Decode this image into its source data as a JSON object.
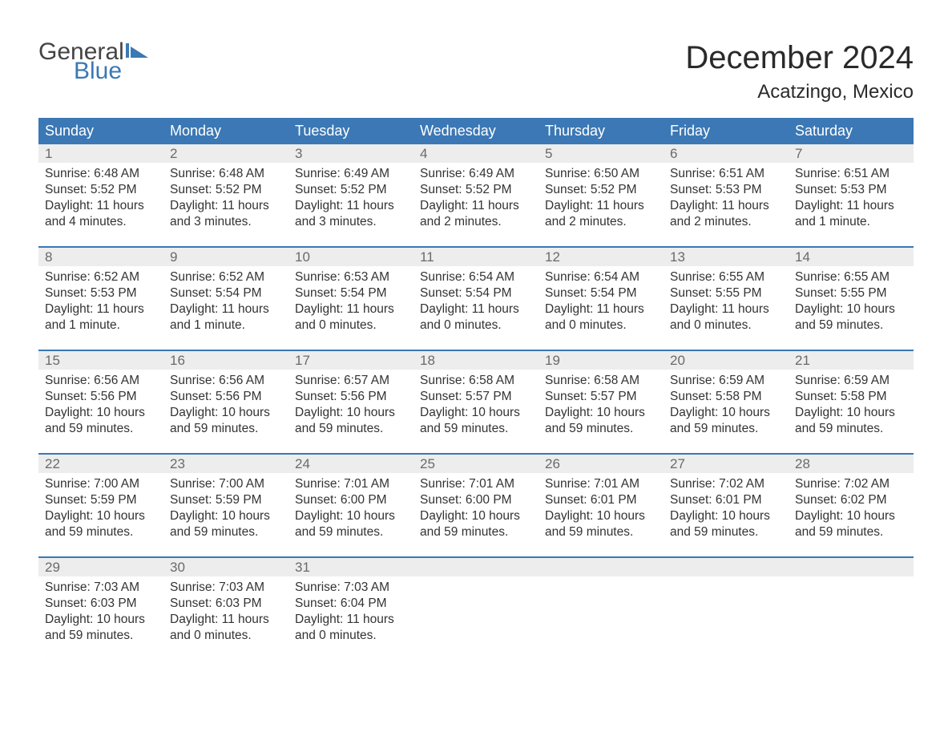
{
  "logo": {
    "top": "General",
    "bottom": "Blue",
    "top_color": "#444444",
    "bottom_color": "#3b78b5",
    "flag_color": "#3b78b5"
  },
  "title": "December 2024",
  "location": "Acatzingo, Mexico",
  "colors": {
    "header_bg": "#3b78b5",
    "header_text": "#ffffff",
    "daynum_bg": "#ededed",
    "daynum_text": "#6a6a6a",
    "body_text": "#333333",
    "week_border": "#3b78b5",
    "page_bg": "#ffffff"
  },
  "weekdays": [
    "Sunday",
    "Monday",
    "Tuesday",
    "Wednesday",
    "Thursday",
    "Friday",
    "Saturday"
  ],
  "weeks": [
    [
      {
        "num": "1",
        "sunrise": "Sunrise: 6:48 AM",
        "sunset": "Sunset: 5:52 PM",
        "daylight": "Daylight: 11 hours and 4 minutes."
      },
      {
        "num": "2",
        "sunrise": "Sunrise: 6:48 AM",
        "sunset": "Sunset: 5:52 PM",
        "daylight": "Daylight: 11 hours and 3 minutes."
      },
      {
        "num": "3",
        "sunrise": "Sunrise: 6:49 AM",
        "sunset": "Sunset: 5:52 PM",
        "daylight": "Daylight: 11 hours and 3 minutes."
      },
      {
        "num": "4",
        "sunrise": "Sunrise: 6:49 AM",
        "sunset": "Sunset: 5:52 PM",
        "daylight": "Daylight: 11 hours and 2 minutes."
      },
      {
        "num": "5",
        "sunrise": "Sunrise: 6:50 AM",
        "sunset": "Sunset: 5:52 PM",
        "daylight": "Daylight: 11 hours and 2 minutes."
      },
      {
        "num": "6",
        "sunrise": "Sunrise: 6:51 AM",
        "sunset": "Sunset: 5:53 PM",
        "daylight": "Daylight: 11 hours and 2 minutes."
      },
      {
        "num": "7",
        "sunrise": "Sunrise: 6:51 AM",
        "sunset": "Sunset: 5:53 PM",
        "daylight": "Daylight: 11 hours and 1 minute."
      }
    ],
    [
      {
        "num": "8",
        "sunrise": "Sunrise: 6:52 AM",
        "sunset": "Sunset: 5:53 PM",
        "daylight": "Daylight: 11 hours and 1 minute."
      },
      {
        "num": "9",
        "sunrise": "Sunrise: 6:52 AM",
        "sunset": "Sunset: 5:54 PM",
        "daylight": "Daylight: 11 hours and 1 minute."
      },
      {
        "num": "10",
        "sunrise": "Sunrise: 6:53 AM",
        "sunset": "Sunset: 5:54 PM",
        "daylight": "Daylight: 11 hours and 0 minutes."
      },
      {
        "num": "11",
        "sunrise": "Sunrise: 6:54 AM",
        "sunset": "Sunset: 5:54 PM",
        "daylight": "Daylight: 11 hours and 0 minutes."
      },
      {
        "num": "12",
        "sunrise": "Sunrise: 6:54 AM",
        "sunset": "Sunset: 5:54 PM",
        "daylight": "Daylight: 11 hours and 0 minutes."
      },
      {
        "num": "13",
        "sunrise": "Sunrise: 6:55 AM",
        "sunset": "Sunset: 5:55 PM",
        "daylight": "Daylight: 11 hours and 0 minutes."
      },
      {
        "num": "14",
        "sunrise": "Sunrise: 6:55 AM",
        "sunset": "Sunset: 5:55 PM",
        "daylight": "Daylight: 10 hours and 59 minutes."
      }
    ],
    [
      {
        "num": "15",
        "sunrise": "Sunrise: 6:56 AM",
        "sunset": "Sunset: 5:56 PM",
        "daylight": "Daylight: 10 hours and 59 minutes."
      },
      {
        "num": "16",
        "sunrise": "Sunrise: 6:56 AM",
        "sunset": "Sunset: 5:56 PM",
        "daylight": "Daylight: 10 hours and 59 minutes."
      },
      {
        "num": "17",
        "sunrise": "Sunrise: 6:57 AM",
        "sunset": "Sunset: 5:56 PM",
        "daylight": "Daylight: 10 hours and 59 minutes."
      },
      {
        "num": "18",
        "sunrise": "Sunrise: 6:58 AM",
        "sunset": "Sunset: 5:57 PM",
        "daylight": "Daylight: 10 hours and 59 minutes."
      },
      {
        "num": "19",
        "sunrise": "Sunrise: 6:58 AM",
        "sunset": "Sunset: 5:57 PM",
        "daylight": "Daylight: 10 hours and 59 minutes."
      },
      {
        "num": "20",
        "sunrise": "Sunrise: 6:59 AM",
        "sunset": "Sunset: 5:58 PM",
        "daylight": "Daylight: 10 hours and 59 minutes."
      },
      {
        "num": "21",
        "sunrise": "Sunrise: 6:59 AM",
        "sunset": "Sunset: 5:58 PM",
        "daylight": "Daylight: 10 hours and 59 minutes."
      }
    ],
    [
      {
        "num": "22",
        "sunrise": "Sunrise: 7:00 AM",
        "sunset": "Sunset: 5:59 PM",
        "daylight": "Daylight: 10 hours and 59 minutes."
      },
      {
        "num": "23",
        "sunrise": "Sunrise: 7:00 AM",
        "sunset": "Sunset: 5:59 PM",
        "daylight": "Daylight: 10 hours and 59 minutes."
      },
      {
        "num": "24",
        "sunrise": "Sunrise: 7:01 AM",
        "sunset": "Sunset: 6:00 PM",
        "daylight": "Daylight: 10 hours and 59 minutes."
      },
      {
        "num": "25",
        "sunrise": "Sunrise: 7:01 AM",
        "sunset": "Sunset: 6:00 PM",
        "daylight": "Daylight: 10 hours and 59 minutes."
      },
      {
        "num": "26",
        "sunrise": "Sunrise: 7:01 AM",
        "sunset": "Sunset: 6:01 PM",
        "daylight": "Daylight: 10 hours and 59 minutes."
      },
      {
        "num": "27",
        "sunrise": "Sunrise: 7:02 AM",
        "sunset": "Sunset: 6:01 PM",
        "daylight": "Daylight: 10 hours and 59 minutes."
      },
      {
        "num": "28",
        "sunrise": "Sunrise: 7:02 AM",
        "sunset": "Sunset: 6:02 PM",
        "daylight": "Daylight: 10 hours and 59 minutes."
      }
    ],
    [
      {
        "num": "29",
        "sunrise": "Sunrise: 7:03 AM",
        "sunset": "Sunset: 6:03 PM",
        "daylight": "Daylight: 10 hours and 59 minutes."
      },
      {
        "num": "30",
        "sunrise": "Sunrise: 7:03 AM",
        "sunset": "Sunset: 6:03 PM",
        "daylight": "Daylight: 11 hours and 0 minutes."
      },
      {
        "num": "31",
        "sunrise": "Sunrise: 7:03 AM",
        "sunset": "Sunset: 6:04 PM",
        "daylight": "Daylight: 11 hours and 0 minutes."
      },
      null,
      null,
      null,
      null
    ]
  ]
}
